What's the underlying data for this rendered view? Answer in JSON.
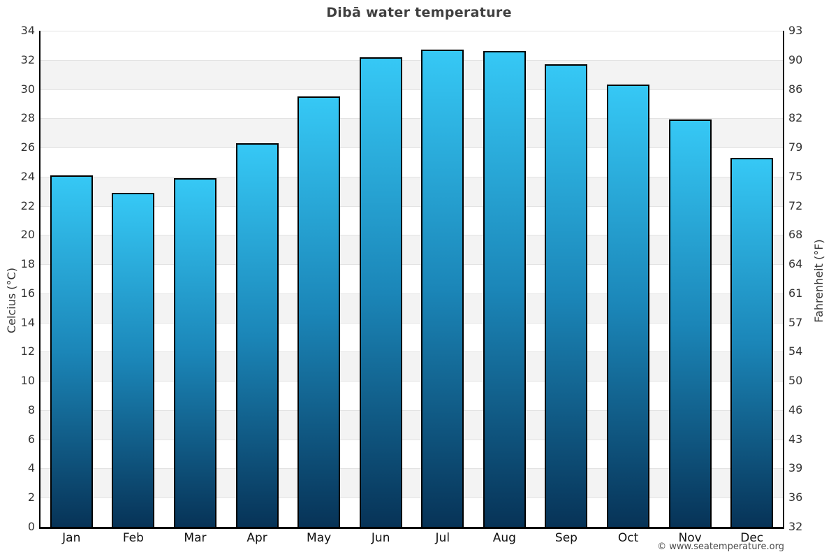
{
  "title": "Dibā water temperature",
  "footer": "© www.seatemperature.org",
  "axes": {
    "left_label": "Celcius (°C)",
    "right_label": "Fahrenheit (°F)",
    "celsius_ticks": [
      "34",
      "32",
      "30",
      "28",
      "26",
      "24",
      "22",
      "20",
      "18",
      "16",
      "14",
      "12",
      "10",
      "8",
      "6",
      "4",
      "2",
      "0"
    ],
    "fahrenheit_ticks": [
      "93",
      "90",
      "86",
      "82",
      "79",
      "75",
      "72",
      "68",
      "64",
      "61",
      "57",
      "54",
      "50",
      "46",
      "43",
      "39",
      "36",
      "32"
    ]
  },
  "chart_data": {
    "type": "bar",
    "title": "Dibā water temperature",
    "categories": [
      "Jan",
      "Feb",
      "Mar",
      "Apr",
      "May",
      "Jun",
      "Jul",
      "Aug",
      "Sep",
      "Oct",
      "Nov",
      "Dec"
    ],
    "values": [
      24.1,
      22.9,
      23.9,
      26.3,
      29.5,
      32.2,
      32.7,
      32.6,
      31.7,
      30.3,
      27.9,
      25.3
    ],
    "unit": "°C",
    "xlabel": "",
    "ylabel_left": "Celcius (°C)",
    "ylabel_right": "Fahrenheit (°F)",
    "ylim": [
      0,
      34
    ],
    "y_tick_step": 2,
    "grid": "horizontal-bands",
    "legend": "none",
    "colors": {
      "bar_gradient_top": "#36c8f5",
      "bar_gradient_mid": "#1b86b8",
      "bar_gradient_bottom": "#073357",
      "bar_border": "#000000",
      "band_gray": "#f3f3f3",
      "band_white": "#ffffff",
      "gridline": "#e3e3e3",
      "title_text": "#3f3f3f",
      "tick_text": "#333333"
    }
  }
}
